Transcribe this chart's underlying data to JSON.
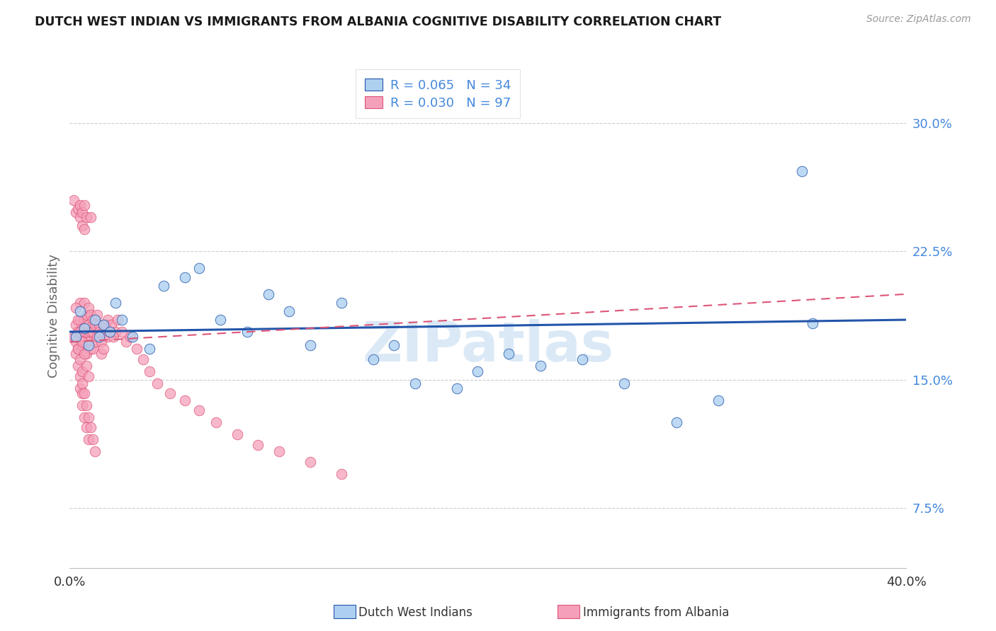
{
  "title": "DUTCH WEST INDIAN VS IMMIGRANTS FROM ALBANIA COGNITIVE DISABILITY CORRELATION CHART",
  "source": "Source: ZipAtlas.com",
  "ylabel": "Cognitive Disability",
  "right_yticks": [
    "30.0%",
    "22.5%",
    "15.0%",
    "7.5%"
  ],
  "right_ytick_vals": [
    0.3,
    0.225,
    0.15,
    0.075
  ],
  "xlim": [
    0.0,
    0.4
  ],
  "ylim": [
    0.04,
    0.335
  ],
  "watermark": "ZIPatlas",
  "legend_blue_R": "R = 0.065",
  "legend_blue_N": "N = 34",
  "legend_pink_R": "R = 0.030",
  "legend_pink_N": "N = 97",
  "legend_label_blue": "Dutch West Indians",
  "legend_label_pink": "Immigrants from Albania",
  "color_blue": "#aed0f0",
  "color_pink": "#f5a0ba",
  "color_line_blue": "#2255aa",
  "color_line_pink": "#dd5577",
  "color_right_tick": "#4488dd",
  "color_grid": "#cccccc",
  "blue_x": [
    0.003,
    0.005,
    0.007,
    0.009,
    0.012,
    0.014,
    0.016,
    0.019,
    0.022,
    0.025,
    0.03,
    0.038,
    0.045,
    0.055,
    0.062,
    0.072,
    0.085,
    0.095,
    0.105,
    0.115,
    0.13,
    0.145,
    0.155,
    0.165,
    0.185,
    0.195,
    0.21,
    0.225,
    0.245,
    0.265,
    0.29,
    0.31,
    0.35,
    0.355
  ],
  "blue_y": [
    0.175,
    0.19,
    0.18,
    0.17,
    0.185,
    0.175,
    0.182,
    0.178,
    0.195,
    0.185,
    0.175,
    0.168,
    0.205,
    0.21,
    0.215,
    0.185,
    0.178,
    0.2,
    0.19,
    0.17,
    0.195,
    0.162,
    0.17,
    0.148,
    0.145,
    0.155,
    0.165,
    0.158,
    0.162,
    0.148,
    0.125,
    0.138,
    0.272,
    0.183
  ],
  "pink_x": [
    0.002,
    0.002,
    0.003,
    0.003,
    0.003,
    0.004,
    0.004,
    0.004,
    0.005,
    0.005,
    0.005,
    0.005,
    0.005,
    0.006,
    0.006,
    0.006,
    0.006,
    0.007,
    0.007,
    0.007,
    0.007,
    0.007,
    0.008,
    0.008,
    0.008,
    0.008,
    0.009,
    0.009,
    0.009,
    0.01,
    0.01,
    0.01,
    0.01,
    0.011,
    0.011,
    0.011,
    0.012,
    0.012,
    0.013,
    0.013,
    0.014,
    0.014,
    0.015,
    0.015,
    0.016,
    0.016,
    0.017,
    0.018,
    0.018,
    0.019,
    0.02,
    0.021,
    0.022,
    0.023,
    0.025,
    0.027,
    0.029,
    0.032,
    0.035,
    0.038,
    0.042,
    0.048,
    0.055,
    0.062,
    0.07,
    0.08,
    0.09,
    0.1,
    0.115,
    0.13,
    0.003,
    0.004,
    0.005,
    0.005,
    0.006,
    0.006,
    0.007,
    0.008,
    0.009,
    0.003,
    0.004,
    0.005,
    0.006,
    0.006,
    0.007,
    0.008,
    0.009,
    0.01,
    0.011,
    0.012,
    0.003,
    0.004,
    0.005,
    0.006,
    0.007,
    0.008,
    0.009
  ],
  "pink_y": [
    0.175,
    0.255,
    0.172,
    0.182,
    0.248,
    0.178,
    0.25,
    0.168,
    0.175,
    0.185,
    0.195,
    0.252,
    0.245,
    0.17,
    0.18,
    0.248,
    0.24,
    0.195,
    0.185,
    0.175,
    0.252,
    0.238,
    0.178,
    0.188,
    0.165,
    0.245,
    0.182,
    0.172,
    0.192,
    0.178,
    0.168,
    0.188,
    0.245,
    0.178,
    0.185,
    0.168,
    0.182,
    0.172,
    0.188,
    0.175,
    0.182,
    0.178,
    0.172,
    0.165,
    0.178,
    0.168,
    0.182,
    0.175,
    0.185,
    0.178,
    0.182,
    0.175,
    0.178,
    0.185,
    0.178,
    0.172,
    0.175,
    0.168,
    0.162,
    0.155,
    0.148,
    0.142,
    0.138,
    0.132,
    0.125,
    0.118,
    0.112,
    0.108,
    0.102,
    0.095,
    0.165,
    0.158,
    0.152,
    0.145,
    0.142,
    0.135,
    0.128,
    0.122,
    0.115,
    0.175,
    0.168,
    0.162,
    0.155,
    0.148,
    0.142,
    0.135,
    0.128,
    0.122,
    0.115,
    0.108,
    0.192,
    0.185,
    0.178,
    0.172,
    0.165,
    0.158,
    0.152
  ]
}
